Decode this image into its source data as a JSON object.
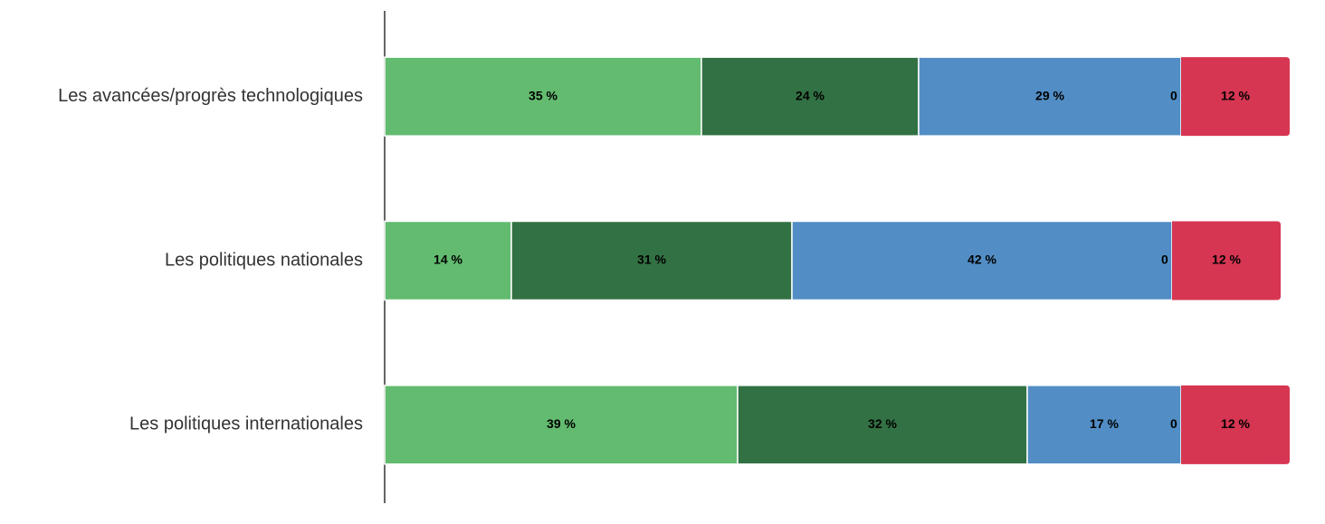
{
  "chart_data": {
    "type": "bar",
    "orientation": "horizontal",
    "stacked": true,
    "categories": [
      "Les avancées/progrès technologiques",
      "Les politiques nationales",
      "Les politiques internationales"
    ],
    "xlim": [
      0,
      100
    ],
    "series": [
      {
        "color": "#62bb6f",
        "values": [
          35,
          14,
          39
        ],
        "value_labels": [
          "35 %",
          "14 %",
          "39 %"
        ]
      },
      {
        "color": "#327143",
        "values": [
          24,
          31,
          32
        ],
        "value_labels": [
          "24 %",
          "31 %",
          "32 %"
        ]
      },
      {
        "color": "#528ec5",
        "values": [
          29,
          42,
          17
        ],
        "value_labels": [
          "29 %",
          "42 %",
          "17 %"
        ]
      },
      {
        "color": "#e8a33c",
        "values": [
          0,
          0,
          0
        ],
        "value_labels": [
          "0 %",
          "0 %",
          "0 %"
        ]
      },
      {
        "color": "#d63652",
        "values": [
          12,
          12,
          12
        ],
        "value_labels": [
          "12 %",
          "12 %",
          "12 %"
        ]
      }
    ]
  }
}
